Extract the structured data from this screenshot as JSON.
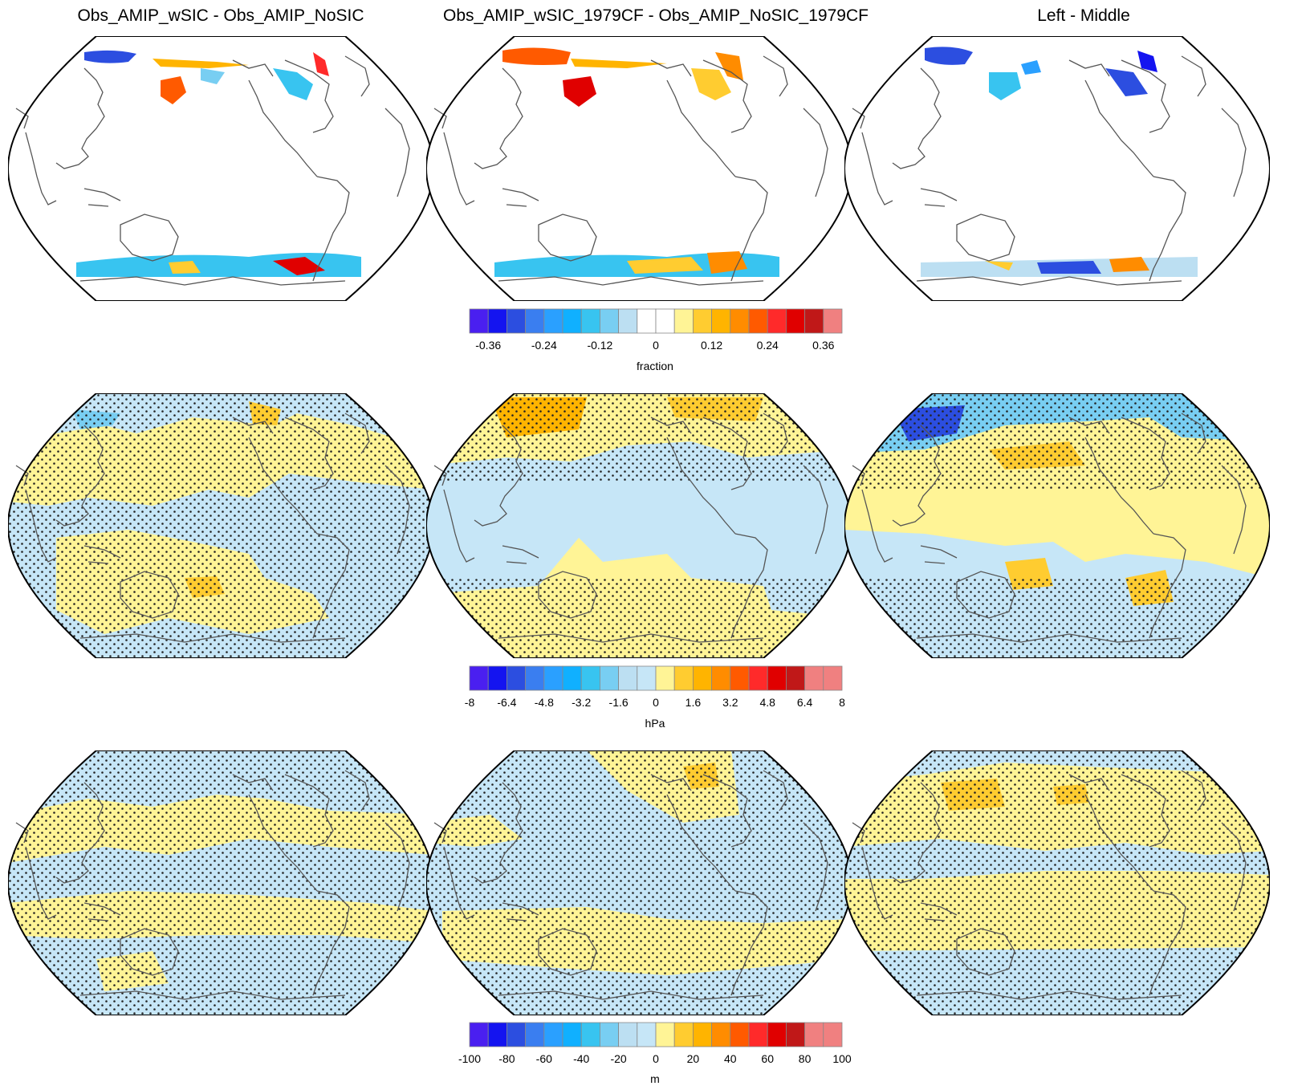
{
  "titles": {
    "left": "Obs_AMIP_wSIC - Obs_AMIP_NoSIC",
    "middle": "Obs_AMIP_wSIC_1979CF - Obs_AMIP_NoSIC_1979CF",
    "right": "Left - Middle"
  },
  "colorbars": [
    {
      "unit": "fraction",
      "colors": [
        "#4a1ff0",
        "#1414f0",
        "#2c4ee0",
        "#3a7ef0",
        "#2aa0ff",
        "#10b0ff",
        "#38c4f0",
        "#78cef2",
        "#bcdff2",
        "#ffffff",
        "#ffffff",
        "#fff496",
        "#ffcc30",
        "#ffb400",
        "#ff8c00",
        "#ff5a00",
        "#ff2a2a",
        "#e00000",
        "#c01818",
        "#f08080"
      ],
      "tick_labels": [
        "-0.36",
        "-0.24",
        "-0.12",
        "0",
        "0.12",
        "0.24",
        "0.36"
      ],
      "tick_positions": [
        2,
        5,
        8,
        11,
        14,
        17,
        20
      ]
    },
    {
      "unit": "hPa",
      "colors": [
        "#4a1ff0",
        "#1414f0",
        "#2c4ee0",
        "#3a7ef0",
        "#2aa0ff",
        "#10b0ff",
        "#38c4f0",
        "#78cef2",
        "#bcdff2",
        "#c6e6f7",
        "#fff496",
        "#ffcc30",
        "#ffb400",
        "#ff8c00",
        "#ff5a00",
        "#ff2a2a",
        "#e00000",
        "#c01818",
        "#f08080",
        "#f08080"
      ],
      "tick_labels": [
        "-8",
        "-6.4",
        "-4.8",
        "-3.2",
        "-1.6",
        "0",
        "1.6",
        "3.2",
        "4.8",
        "6.4",
        "8"
      ],
      "tick_positions": [
        1,
        3,
        5,
        7,
        9,
        11,
        13,
        15,
        17,
        19,
        21
      ]
    },
    {
      "unit": "m",
      "colors": [
        "#4a1ff0",
        "#1414f0",
        "#2c4ee0",
        "#3a7ef0",
        "#2aa0ff",
        "#10b0ff",
        "#38c4f0",
        "#78cef2",
        "#bcdff2",
        "#c6e6f7",
        "#fff496",
        "#ffcc30",
        "#ffb400",
        "#ff8c00",
        "#ff5a00",
        "#ff2a2a",
        "#e00000",
        "#c01818",
        "#f08080",
        "#f08080"
      ],
      "tick_labels": [
        "-100",
        "-80",
        "-60",
        "-40",
        "-20",
        "0",
        "20",
        "40",
        "60",
        "80",
        "100"
      ],
      "tick_positions": [
        1,
        3,
        5,
        7,
        9,
        11,
        13,
        15,
        17,
        19,
        21
      ]
    }
  ]
}
